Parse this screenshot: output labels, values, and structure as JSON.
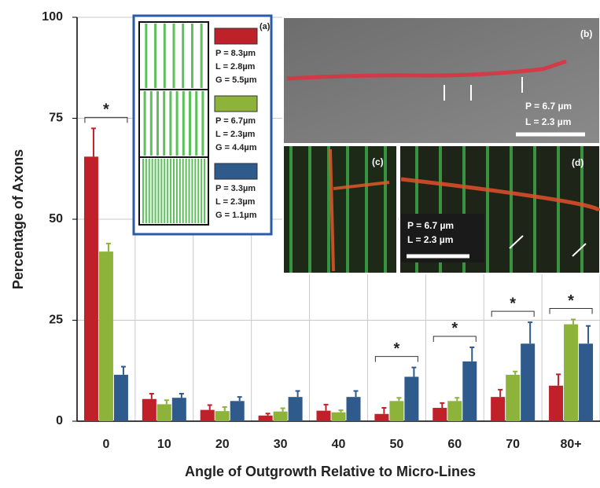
{
  "chart_data": {
    "type": "bar",
    "ylabel": "Percentage of Axons",
    "xlabel": "Angle of Outgrowth Relative to Micro-Lines",
    "categories": [
      "0",
      "10",
      "20",
      "30",
      "40",
      "50",
      "60",
      "70",
      "80+"
    ],
    "ylim": [
      0,
      100
    ],
    "yticks": [
      0,
      25,
      50,
      75,
      100
    ],
    "grid": true,
    "series": [
      {
        "legend_lines": [
          "P = 8.3µm",
          "L = 2.8µm",
          "G = 5.5µm"
        ],
        "color": "#c0202a",
        "values": [
          65.5,
          5.5,
          2.8,
          1.4,
          2.6,
          1.8,
          3.3,
          6,
          8.8
        ],
        "errors": [
          7,
          1.3,
          1.2,
          0.5,
          1.5,
          1.5,
          1.2,
          1.8,
          2.8
        ]
      },
      {
        "legend_lines": [
          "P = 6.7µm",
          "L = 2.3µm",
          "G = 4.4µm"
        ],
        "color": "#8db33a",
        "values": [
          42,
          4.2,
          2.5,
          2.4,
          2.2,
          5,
          5,
          11.5,
          24
        ],
        "errors": [
          2,
          1,
          1,
          0.8,
          0.5,
          0.8,
          0.8,
          0.8,
          1.2
        ]
      },
      {
        "legend_lines": [
          "P = 3.3µm",
          "L = 2.3µm",
          "G = 1.1µm"
        ],
        "color": "#2e5a8c",
        "values": [
          11.5,
          5.8,
          5,
          6,
          6,
          11,
          14.8,
          19.2,
          19.2
        ],
        "errors": [
          2,
          1,
          1,
          1.5,
          1.5,
          2.3,
          3.5,
          5.3,
          4.4
        ]
      }
    ],
    "significance": [
      {
        "category": "0",
        "label": "*"
      },
      {
        "category": "50",
        "label": "*"
      },
      {
        "category": "60",
        "label": "*"
      },
      {
        "category": "70",
        "label": "*"
      },
      {
        "category": "80+",
        "label": "*"
      }
    ],
    "insets": {
      "a": {
        "label": "(a)"
      },
      "b": {
        "label": "(b)",
        "text": [
          "P = 6.7 µm",
          "L = 2.3 µm"
        ]
      },
      "c": {
        "label": "(c)"
      },
      "d": {
        "label": "(d)",
        "text": [
          "P = 6.7 µm",
          "L = 2.3 µm"
        ]
      }
    }
  }
}
